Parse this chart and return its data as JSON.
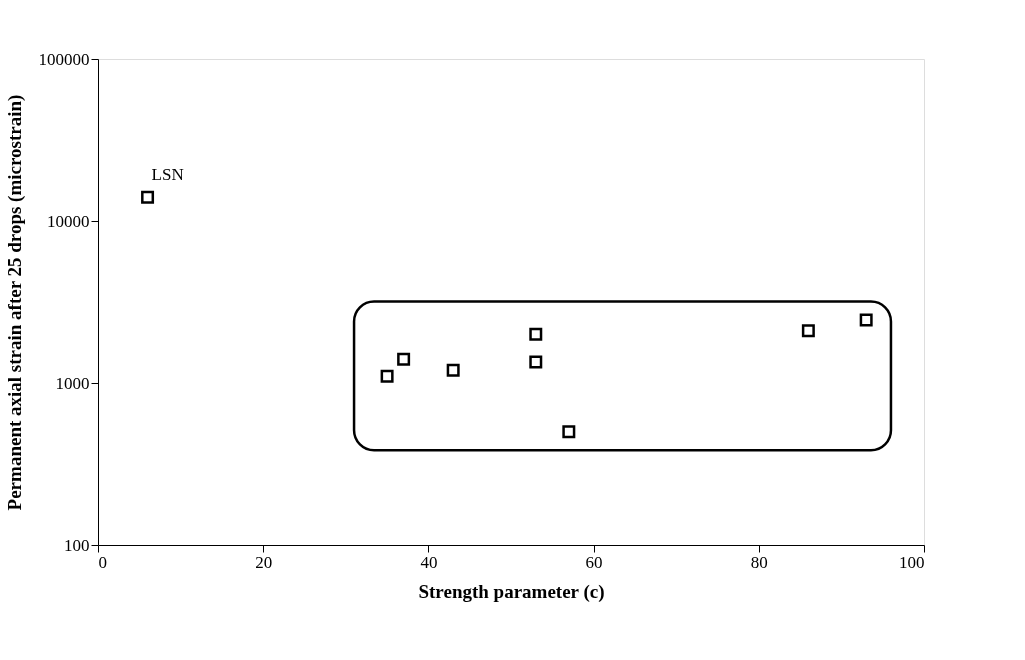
{
  "chart_data": {
    "type": "scatter",
    "xlabel": "Strength parameter (c)",
    "ylabel": "Permanent axial strain after 25 drops (microstrain)",
    "x": [
      6,
      35,
      37,
      43,
      53,
      53,
      57,
      86,
      93
    ],
    "values": [
      14000,
      1100,
      1400,
      1200,
      2000,
      1350,
      500,
      2100,
      2450
    ],
    "color": "#000000",
    "marker": "square",
    "log": "y",
    "grid": false,
    "xlim": [
      0,
      100
    ],
    "xticks": [
      0,
      20,
      40,
      60,
      80,
      100
    ],
    "ylim": [
      100,
      100000
    ],
    "yticks": [
      100,
      1000,
      10000,
      100000
    ],
    "annotations": [
      {
        "text": "LSN",
        "x": 6,
        "y": 14000
      }
    ]
  }
}
